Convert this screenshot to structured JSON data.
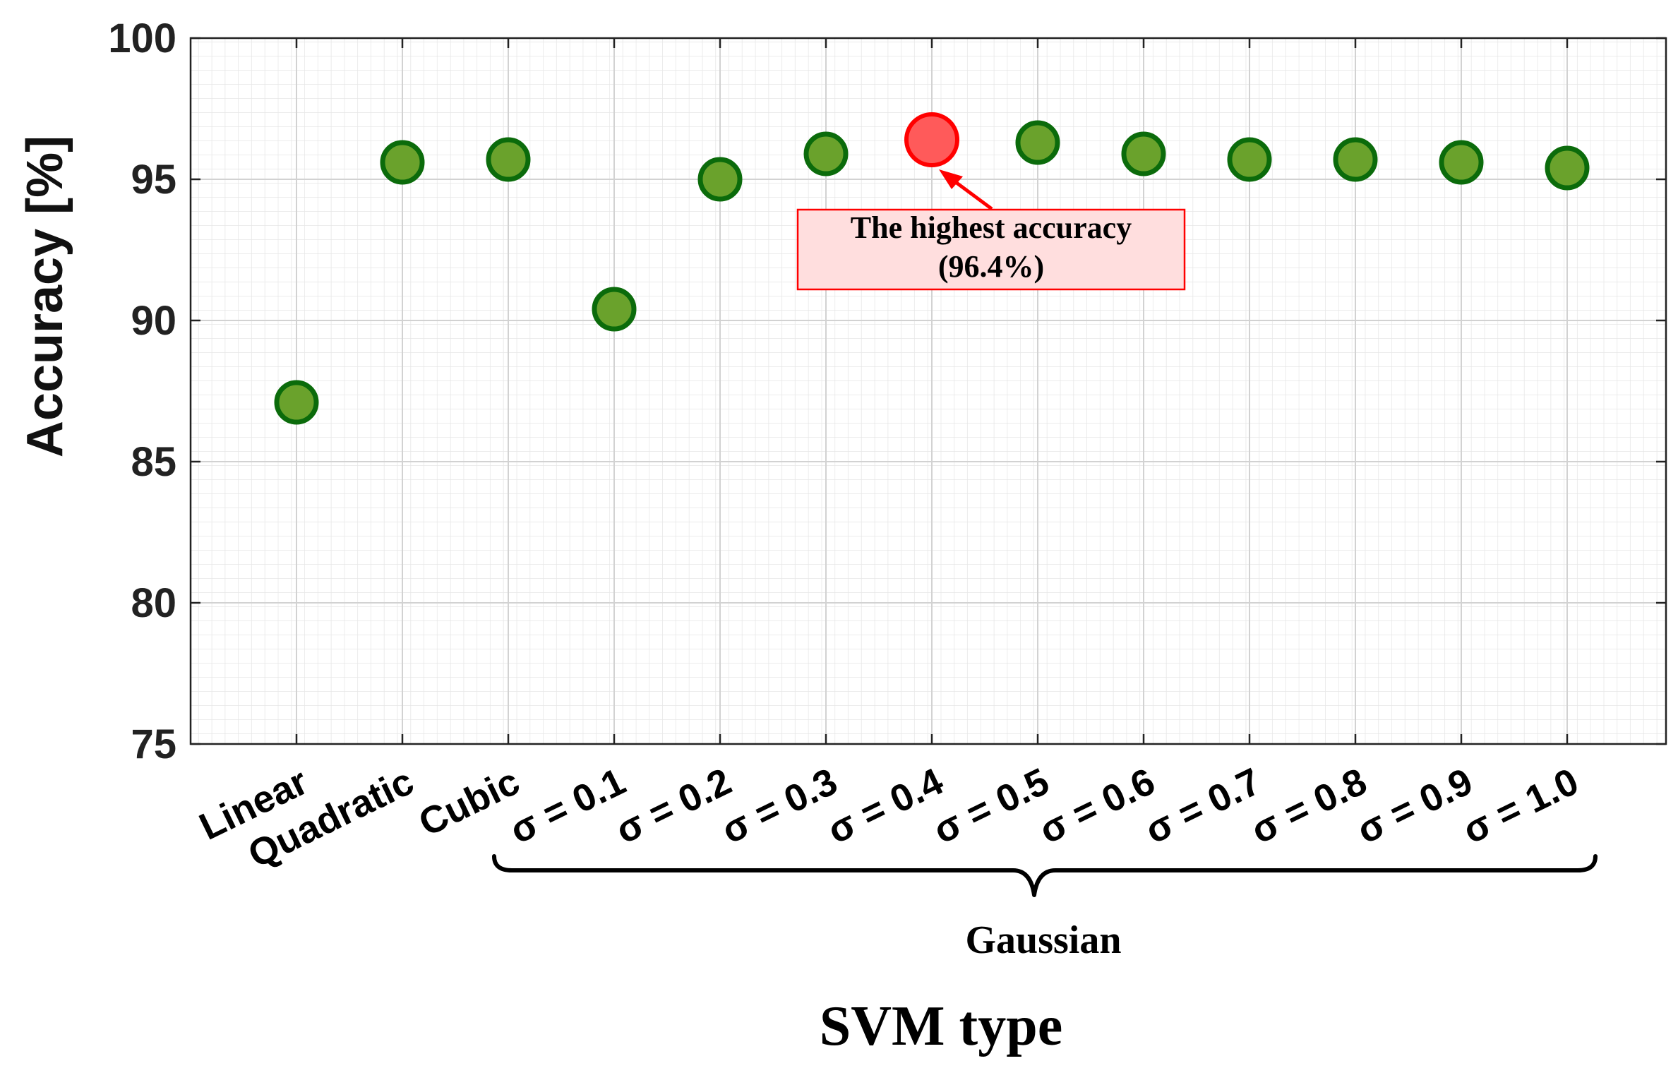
{
  "chart_data": {
    "type": "scatter",
    "title": "",
    "xlabel": "SVM type",
    "ylabel": "Accuracy [%]",
    "ylim": [
      75,
      100
    ],
    "yticks": [
      "75",
      "80",
      "85",
      "90",
      "95",
      "100"
    ],
    "grid": true,
    "categories": [
      "Linear",
      "Quadratic",
      "Cubic",
      "σ = 0.1",
      "σ = 0.2",
      "σ = 0.3",
      "σ = 0.4",
      "σ = 0.5",
      "σ = 0.6",
      "σ = 0.7",
      "σ = 0.8",
      "σ = 0.9",
      "σ = 1.0"
    ],
    "values": [
      87.1,
      95.6,
      95.7,
      90.4,
      95.0,
      95.9,
      96.4,
      96.3,
      95.9,
      95.7,
      95.7,
      95.6,
      95.4
    ],
    "highlight_index": 6,
    "group_label": "Gaussian",
    "group_range": [
      "σ = 0.1",
      "σ = 1.0"
    ],
    "annotation": {
      "line1": "The highest accuracy",
      "line2": "(96.4%)"
    },
    "colors": {
      "point_fill": "#6aa22c",
      "point_stroke": "#0b6b0b",
      "highlight_fill": "#ff5a5a",
      "highlight_stroke": "#ff0000",
      "annotation_box_fill": "#ffdede",
      "annotation_box_stroke": "#ff0000",
      "arrow": "#ff0000"
    }
  }
}
